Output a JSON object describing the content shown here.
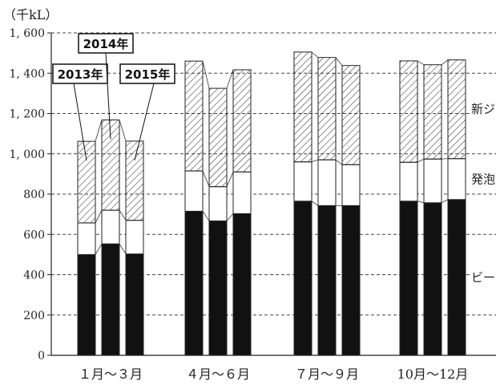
{
  "chart_data": {
    "type": "bar",
    "stacked": true,
    "unit_label": "（千kL）",
    "ylim": [
      0,
      1600
    ],
    "y_ticks": [
      0,
      200,
      400,
      600,
      800,
      1000,
      1200,
      1400,
      1600
    ],
    "y_tick_labels": [
      "0",
      "200",
      "400",
      "600",
      "800",
      "1, 000",
      "1, 200",
      "1, 400",
      "1, 600"
    ],
    "grid": "horizontal-dashed",
    "categories": [
      "１月～３月",
      "４月～６月",
      "７月～９月",
      "10月～12月"
    ],
    "years": [
      "2013年",
      "2014年",
      "2015年"
    ],
    "series": [
      {
        "name": "ビー",
        "fill": "#111111",
        "pattern": "solid",
        "values": [
          [
            500,
            553,
            503
          ],
          [
            715,
            667,
            703
          ],
          [
            765,
            743,
            743
          ],
          [
            765,
            757,
            773
          ]
        ]
      },
      {
        "name": "発泡",
        "fill": "#ffffff",
        "pattern": "plain",
        "values": [
          [
            157,
            167,
            167
          ],
          [
            200,
            170,
            207
          ],
          [
            195,
            227,
            203
          ],
          [
            193,
            217,
            203
          ]
        ]
      },
      {
        "name": "新ジ",
        "fill": "#ffffff",
        "pattern": "hatch",
        "values": [
          [
            405,
            448,
            393
          ],
          [
            545,
            488,
            507
          ],
          [
            545,
            508,
            492
          ],
          [
            503,
            468,
            490
          ]
        ]
      }
    ],
    "series_labels_visible": [
      "新ジ",
      "発泡",
      "ビー"
    ],
    "callouts": [
      {
        "label": "2013年",
        "group": 0,
        "bar": 0
      },
      {
        "label": "2014年",
        "group": 0,
        "bar": 1
      },
      {
        "label": "2015年",
        "group": 0,
        "bar": 2
      }
    ]
  }
}
